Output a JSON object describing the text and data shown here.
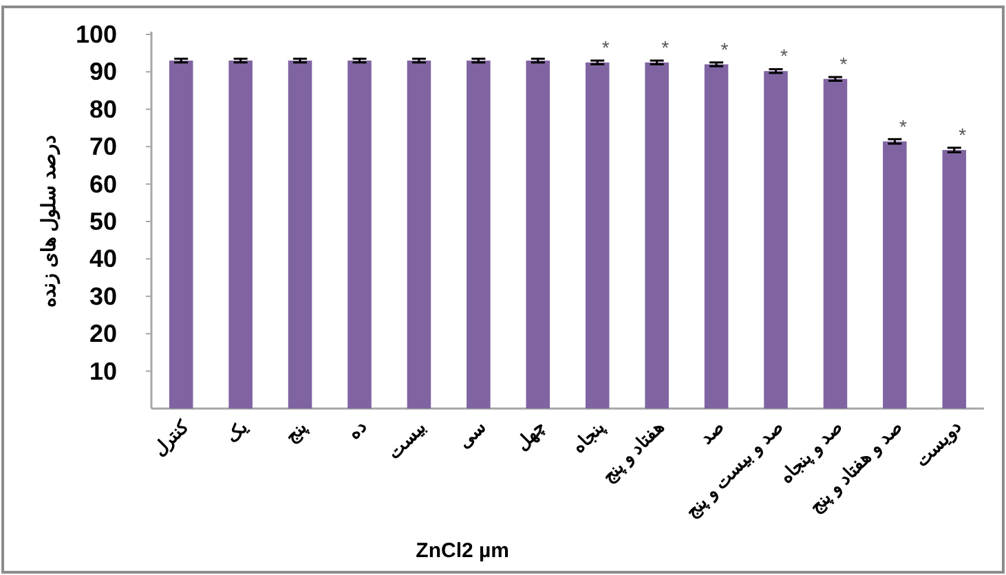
{
  "chart_data": {
    "type": "bar",
    "ylabel": "درصد سلول های زنده",
    "xlabel": "ZnCl2 µm",
    "categories": [
      "کنترل",
      "یک",
      "پنج",
      "ده",
      "بیست",
      "سی",
      "چهل",
      "پنجاه",
      "هفتاد و پنج",
      "صد",
      "صد و بیست و پنج",
      "صد و پنجاه",
      "صد و هفتاد و پنج",
      "دویست"
    ],
    "values": [
      93,
      93,
      93,
      93,
      93,
      93,
      93,
      92.5,
      92.5,
      92,
      90.2,
      88.1,
      71.4,
      69.1
    ],
    "errors": [
      0.5,
      0.5,
      0.5,
      0.5,
      0.5,
      0.5,
      0.5,
      0.5,
      0.5,
      0.5,
      0.5,
      0.5,
      0.6,
      0.6
    ],
    "color": "#8064a2",
    "ylim": [
      0,
      100
    ],
    "yticks": [
      10,
      20,
      30,
      40,
      50,
      60,
      70,
      80,
      90,
      100
    ],
    "annotations": [
      {
        "text": "*",
        "x": "پنجاه",
        "y": 92.5
      },
      {
        "text": "*",
        "x": "هفتاد و پنج",
        "y": 92.5
      },
      {
        "text": "*",
        "x": "صد",
        "y": 92
      },
      {
        "text": "*",
        "x": "صد و بیست و پنج",
        "y": 90.2
      },
      {
        "text": "*",
        "x": "صد و پنجاه",
        "y": 88.1
      },
      {
        "text": "*",
        "x": "صد و هفتاد و پنج",
        "y": 71.4
      },
      {
        "text": "*",
        "x": "دویست",
        "y": 69.1
      }
    ]
  }
}
